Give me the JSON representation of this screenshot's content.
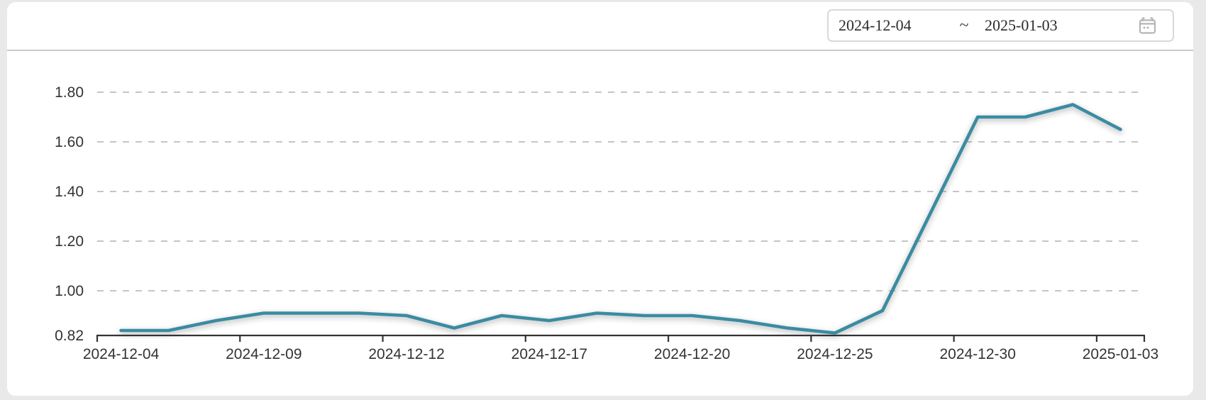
{
  "page": {
    "background_color": "#e9e9e9",
    "card_background_color": "#ffffff",
    "divider_color": "#c9c9c9"
  },
  "header": {
    "date_range_picker": {
      "start_date": "2024-12-04",
      "separator": "~",
      "end_date": "2025-01-03",
      "icon": "calendar-icon",
      "border_color": "#d7d9dc",
      "text_color": "#2b2b2b"
    }
  },
  "chart_data": {
    "type": "line",
    "title": "",
    "xlabel": "",
    "ylabel": "",
    "legend": "none",
    "grid": "horizontal dashed",
    "x": [
      "2024-12-04",
      "2024-12-05",
      "2024-12-06",
      "2024-12-09",
      "2024-12-10",
      "2024-12-11",
      "2024-12-12",
      "2024-12-13",
      "2024-12-16",
      "2024-12-17",
      "2024-12-18",
      "2024-12-19",
      "2024-12-20",
      "2024-12-23",
      "2024-12-24",
      "2024-12-25",
      "2024-12-26",
      "2024-12-27",
      "2024-12-30",
      "2024-12-31",
      "2025-01-02",
      "2025-01-03"
    ],
    "values": [
      0.84,
      0.84,
      0.88,
      0.91,
      0.91,
      0.91,
      0.9,
      0.85,
      0.9,
      0.88,
      0.91,
      0.9,
      0.9,
      0.88,
      0.85,
      0.83,
      0.92,
      1.31,
      1.7,
      1.7,
      1.75,
      1.65
    ],
    "x_tick_labels": [
      "2024-12-04",
      "2024-12-09",
      "2024-12-12",
      "2024-12-17",
      "2024-12-20",
      "2024-12-25",
      "2024-12-30",
      "2025-01-03"
    ],
    "x_label_interval": 3,
    "y_ticks": [
      1.8,
      1.6,
      1.4,
      1.2,
      1.0,
      0.82
    ],
    "y_tick_labels": [
      "1.80",
      "1.60",
      "1.40",
      "1.20",
      "1.00",
      "0.82"
    ],
    "ylim": [
      0.82,
      1.88
    ],
    "line_color": "#3a8ba1",
    "axis_color": "#333333",
    "grid_color": "#bdbdbd",
    "label_color": "#333333"
  }
}
